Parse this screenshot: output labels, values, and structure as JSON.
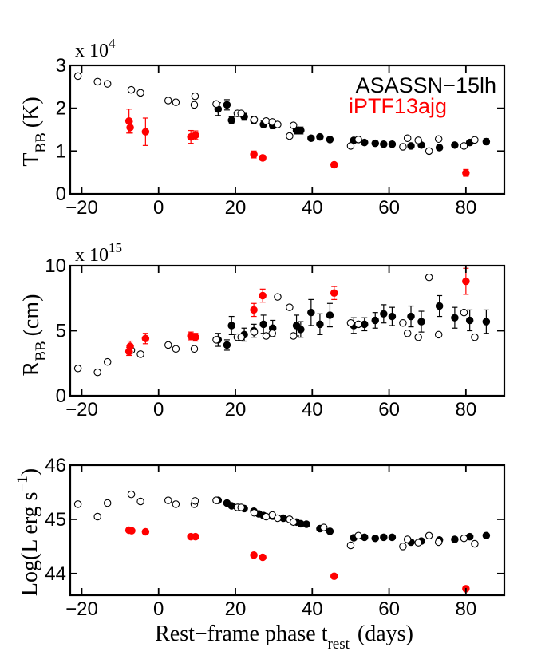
{
  "colors": {
    "asassn": "#000000",
    "iptf": "#ff0000",
    "open": "#000000"
  },
  "x_axis": {
    "label_main": "Rest−frame phase t",
    "label_sub": "rest",
    "label_units": "(days)",
    "ticks": [
      -20,
      0,
      20,
      40,
      60,
      80
    ],
    "tick_labels": [
      "−20",
      "0",
      "20",
      "40",
      "60",
      "80"
    ],
    "range": [
      -23,
      90
    ]
  },
  "chart_data": [
    {
      "type": "scatter",
      "name": "temperature",
      "ylabel_main": "T",
      "ylabel_sub": "BB",
      "ylabel_units": "(K)",
      "exponent_label": "x 10",
      "exponent_power": "4",
      "ylim": [
        0,
        3
      ],
      "yticks": [
        0,
        1,
        2,
        3
      ],
      "ytick_labels": [
        "0",
        "1",
        "2",
        "3"
      ],
      "legend": [
        "ASASSN−15lh",
        "iPTF13ajg"
      ],
      "legend_position": "top-right",
      "series": [
        {
          "name": "ASASSN-15lh (filled)",
          "style": "filled-black",
          "points": [
            {
              "x": 15.5,
              "y": 1.98,
              "e": 0.15
            },
            {
              "x": 17.8,
              "y": 2.08,
              "e": 0.12
            },
            {
              "x": 19.0,
              "y": 1.72,
              "e": 0.08
            },
            {
              "x": 22.3,
              "y": 1.8,
              "e": 0.08
            },
            {
              "x": 24.8,
              "y": 1.72,
              "e": 0.08
            },
            {
              "x": 27.3,
              "y": 1.62,
              "e": 0.08
            },
            {
              "x": 29.7,
              "y": 1.6,
              "e": 0.08
            },
            {
              "x": 35.9,
              "y": 1.48,
              "e": 0.08
            },
            {
              "x": 37.0,
              "y": 1.48,
              "e": 0.08
            },
            {
              "x": 39.7,
              "y": 1.3,
              "e": 0.05
            },
            {
              "x": 42.0,
              "y": 1.33,
              "e": 0.05
            },
            {
              "x": 44.6,
              "y": 1.27,
              "e": 0.05
            },
            {
              "x": 50.8,
              "y": 1.25,
              "e": 0.05
            },
            {
              "x": 53.6,
              "y": 1.2,
              "e": 0.05
            },
            {
              "x": 56.4,
              "y": 1.18,
              "e": 0.05
            },
            {
              "x": 58.6,
              "y": 1.16,
              "e": 0.05
            },
            {
              "x": 60.8,
              "y": 1.16,
              "e": 0.05
            },
            {
              "x": 65.7,
              "y": 1.12,
              "e": 0.05
            },
            {
              "x": 68.4,
              "y": 1.14,
              "e": 0.05
            },
            {
              "x": 73.1,
              "y": 1.08,
              "e": 0.05
            },
            {
              "x": 77.1,
              "y": 1.14,
              "e": 0.05
            },
            {
              "x": 81.0,
              "y": 1.2,
              "e": 0.05
            },
            {
              "x": 85.3,
              "y": 1.22,
              "e": 0.07
            }
          ]
        },
        {
          "name": "ASASSN-15lh (open)",
          "style": "open-black",
          "points": [
            {
              "x": -21.0,
              "y": 2.75
            },
            {
              "x": -15.9,
              "y": 2.62
            },
            {
              "x": -13.3,
              "y": 2.57
            },
            {
              "x": -7.1,
              "y": 2.43
            },
            {
              "x": -4.7,
              "y": 2.36
            },
            {
              "x": 2.5,
              "y": 2.18
            },
            {
              "x": 4.5,
              "y": 2.14
            },
            {
              "x": 9.5,
              "y": 2.28
            },
            {
              "x": 9.3,
              "y": 2.08
            },
            {
              "x": 15.0,
              "y": 2.1
            },
            {
              "x": 20.5,
              "y": 1.88
            },
            {
              "x": 21.5,
              "y": 1.88
            },
            {
              "x": 24.9,
              "y": 1.73
            },
            {
              "x": 28.0,
              "y": 1.7
            },
            {
              "x": 29.6,
              "y": 1.68
            },
            {
              "x": 31.0,
              "y": 1.62
            },
            {
              "x": 34.1,
              "y": 1.35
            },
            {
              "x": 35.1,
              "y": 1.6
            },
            {
              "x": 50.0,
              "y": 1.12
            },
            {
              "x": 52.0,
              "y": 1.27
            },
            {
              "x": 63.6,
              "y": 1.1
            },
            {
              "x": 64.8,
              "y": 1.3
            },
            {
              "x": 67.6,
              "y": 1.25
            },
            {
              "x": 70.4,
              "y": 1.0
            },
            {
              "x": 72.9,
              "y": 1.28
            },
            {
              "x": 79.5,
              "y": 1.12
            },
            {
              "x": 82.3,
              "y": 1.26
            }
          ]
        },
        {
          "name": "iPTF13ajg",
          "style": "filled-red",
          "points": [
            {
              "x": -7.7,
              "y": 1.7,
              "e": 0.28
            },
            {
              "x": -7.4,
              "y": 1.55,
              "e": 0.13
            },
            {
              "x": -3.4,
              "y": 1.45,
              "e": 0.32
            },
            {
              "x": 8.4,
              "y": 1.33,
              "e": 0.15
            },
            {
              "x": 9.6,
              "y": 1.37,
              "e": 0.1
            },
            {
              "x": 24.8,
              "y": 0.92,
              "e": 0.08
            },
            {
              "x": 27.1,
              "y": 0.84,
              "e": 0.06
            },
            {
              "x": 45.7,
              "y": 0.68,
              "e": 0.05
            },
            {
              "x": 80.0,
              "y": 0.49,
              "e": 0.08
            }
          ]
        }
      ]
    },
    {
      "type": "scatter",
      "name": "radius",
      "ylabel_main": "R",
      "ylabel_sub": "BB",
      "ylabel_units": "(cm)",
      "exponent_label": "x 10",
      "exponent_power": "15",
      "ylim": [
        0,
        10
      ],
      "yticks": [
        0,
        5,
        10
      ],
      "ytick_labels": [
        "0",
        "5",
        "10"
      ],
      "series": [
        {
          "name": "ASASSN-15lh (filled)",
          "style": "filled-black",
          "points": [
            {
              "x": 15.5,
              "y": 4.3,
              "e": 0.5
            },
            {
              "x": 17.8,
              "y": 3.9,
              "e": 0.4
            },
            {
              "x": 19.0,
              "y": 5.4,
              "e": 0.7
            },
            {
              "x": 22.3,
              "y": 4.7,
              "e": 0.5
            },
            {
              "x": 24.8,
              "y": 5.0,
              "e": 0.5
            },
            {
              "x": 27.3,
              "y": 5.5,
              "e": 0.7
            },
            {
              "x": 29.7,
              "y": 5.2,
              "e": 0.6
            },
            {
              "x": 35.9,
              "y": 5.4,
              "e": 0.8
            },
            {
              "x": 37.0,
              "y": 5.1,
              "e": 0.6
            },
            {
              "x": 39.7,
              "y": 6.4,
              "e": 1.0
            },
            {
              "x": 42.0,
              "y": 5.5,
              "e": 0.8
            },
            {
              "x": 44.6,
              "y": 6.2,
              "e": 0.9
            },
            {
              "x": 50.8,
              "y": 5.4,
              "e": 0.6
            },
            {
              "x": 53.6,
              "y": 5.5,
              "e": 0.5
            },
            {
              "x": 56.4,
              "y": 5.8,
              "e": 0.6
            },
            {
              "x": 58.6,
              "y": 6.3,
              "e": 0.7
            },
            {
              "x": 60.8,
              "y": 6.1,
              "e": 0.7
            },
            {
              "x": 65.7,
              "y": 6.1,
              "e": 0.8
            },
            {
              "x": 68.4,
              "y": 5.7,
              "e": 0.8
            },
            {
              "x": 73.1,
              "y": 6.9,
              "e": 0.8
            },
            {
              "x": 77.1,
              "y": 6.0,
              "e": 0.8
            },
            {
              "x": 81.0,
              "y": 5.8,
              "e": 0.8
            },
            {
              "x": 85.3,
              "y": 5.7,
              "e": 0.9
            }
          ]
        },
        {
          "name": "ASASSN-15lh (open)",
          "style": "open-black",
          "points": [
            {
              "x": -21.0,
              "y": 2.1
            },
            {
              "x": -15.9,
              "y": 1.8
            },
            {
              "x": -13.3,
              "y": 2.6
            },
            {
              "x": -7.1,
              "y": 3.5
            },
            {
              "x": -4.7,
              "y": 3.2
            },
            {
              "x": 2.5,
              "y": 3.9
            },
            {
              "x": 4.5,
              "y": 3.6
            },
            {
              "x": 9.3,
              "y": 3.6
            },
            {
              "x": 9.5,
              "y": 4.5
            },
            {
              "x": 15.0,
              "y": 4.3
            },
            {
              "x": 20.5,
              "y": 4.5
            },
            {
              "x": 21.5,
              "y": 4.5
            },
            {
              "x": 24.9,
              "y": 4.9
            },
            {
              "x": 28.0,
              "y": 4.6
            },
            {
              "x": 29.6,
              "y": 4.8
            },
            {
              "x": 31.0,
              "y": 7.6
            },
            {
              "x": 34.1,
              "y": 6.8
            },
            {
              "x": 35.1,
              "y": 4.6
            },
            {
              "x": 50.0,
              "y": 5.6
            },
            {
              "x": 52.0,
              "y": 5.5
            },
            {
              "x": 63.6,
              "y": 5.6
            },
            {
              "x": 64.8,
              "y": 4.8
            },
            {
              "x": 67.6,
              "y": 4.5
            },
            {
              "x": 70.4,
              "y": 9.1
            },
            {
              "x": 72.9,
              "y": 4.7
            },
            {
              "x": 79.5,
              "y": 6.4
            },
            {
              "x": 82.3,
              "y": 4.5
            }
          ]
        },
        {
          "name": "iPTF13ajg",
          "style": "filled-red",
          "points": [
            {
              "x": -7.7,
              "y": 3.4,
              "e": 0.3
            },
            {
              "x": -7.4,
              "y": 3.8,
              "e": 0.4
            },
            {
              "x": -3.4,
              "y": 4.4,
              "e": 0.4
            },
            {
              "x": 8.4,
              "y": 4.6,
              "e": 0.3
            },
            {
              "x": 9.6,
              "y": 4.5,
              "e": 0.3
            },
            {
              "x": 24.8,
              "y": 6.6,
              "e": 0.5
            },
            {
              "x": 27.1,
              "y": 7.7,
              "e": 0.5
            },
            {
              "x": 45.7,
              "y": 7.9,
              "e": 0.5
            },
            {
              "x": 80.0,
              "y": 8.8,
              "e": 1.0
            }
          ]
        }
      ]
    },
    {
      "type": "scatter",
      "name": "luminosity",
      "ylabel_main": "Log(L erg s",
      "ylabel_sup": "−1",
      "ylabel_close": ")",
      "ylim": [
        43.6,
        46
      ],
      "yticks": [
        44,
        45,
        46
      ],
      "ytick_labels": [
        "44",
        "45",
        "46"
      ],
      "series": [
        {
          "name": "ASASSN-15lh (filled)",
          "style": "filled-black",
          "points": [
            {
              "x": 15.5,
              "y": 45.35
            },
            {
              "x": 17.8,
              "y": 45.3
            },
            {
              "x": 19.0,
              "y": 45.25
            },
            {
              "x": 20.7,
              "y": 45.22
            },
            {
              "x": 22.3,
              "y": 45.2
            },
            {
              "x": 24.8,
              "y": 45.15
            },
            {
              "x": 26.1,
              "y": 45.1
            },
            {
              "x": 27.3,
              "y": 45.07
            },
            {
              "x": 29.7,
              "y": 45.06
            },
            {
              "x": 32.5,
              "y": 45.02
            },
            {
              "x": 35.9,
              "y": 44.95
            },
            {
              "x": 37.0,
              "y": 44.92
            },
            {
              "x": 38.5,
              "y": 44.91
            },
            {
              "x": 42.0,
              "y": 44.83
            },
            {
              "x": 44.6,
              "y": 44.78
            },
            {
              "x": 50.8,
              "y": 44.66
            },
            {
              "x": 53.6,
              "y": 44.67
            },
            {
              "x": 56.4,
              "y": 44.65
            },
            {
              "x": 58.6,
              "y": 44.67
            },
            {
              "x": 60.8,
              "y": 44.67
            },
            {
              "x": 65.7,
              "y": 44.58
            },
            {
              "x": 68.4,
              "y": 44.6
            },
            {
              "x": 73.1,
              "y": 44.62
            },
            {
              "x": 77.1,
              "y": 44.63
            },
            {
              "x": 81.0,
              "y": 44.68
            },
            {
              "x": 85.3,
              "y": 44.7
            }
          ]
        },
        {
          "name": "ASASSN-15lh (open)",
          "style": "open-black",
          "points": [
            {
              "x": -21.0,
              "y": 45.28
            },
            {
              "x": -15.9,
              "y": 45.05
            },
            {
              "x": -13.3,
              "y": 45.3
            },
            {
              "x": -7.1,
              "y": 45.46
            },
            {
              "x": -4.7,
              "y": 45.33
            },
            {
              "x": 2.5,
              "y": 45.35
            },
            {
              "x": 4.5,
              "y": 45.28
            },
            {
              "x": 9.3,
              "y": 45.28
            },
            {
              "x": 9.5,
              "y": 45.34
            },
            {
              "x": 15.0,
              "y": 45.35
            },
            {
              "x": 20.5,
              "y": 45.22
            },
            {
              "x": 21.5,
              "y": 45.22
            },
            {
              "x": 24.9,
              "y": 45.12
            },
            {
              "x": 28.0,
              "y": 45.05
            },
            {
              "x": 29.6,
              "y": 45.08
            },
            {
              "x": 31.0,
              "y": 45.02
            },
            {
              "x": 34.1,
              "y": 45.0
            },
            {
              "x": 35.1,
              "y": 44.95
            },
            {
              "x": 43.0,
              "y": 44.85
            },
            {
              "x": 50.0,
              "y": 44.52
            },
            {
              "x": 52.0,
              "y": 44.7
            },
            {
              "x": 63.6,
              "y": 44.5
            },
            {
              "x": 64.8,
              "y": 44.63
            },
            {
              "x": 67.6,
              "y": 44.57
            },
            {
              "x": 70.4,
              "y": 44.7
            },
            {
              "x": 72.9,
              "y": 44.58
            },
            {
              "x": 79.5,
              "y": 44.65
            },
            {
              "x": 82.3,
              "y": 44.55
            }
          ]
        },
        {
          "name": "iPTF13ajg",
          "style": "filled-red",
          "points": [
            {
              "x": -7.7,
              "y": 44.8
            },
            {
              "x": -7.0,
              "y": 44.79
            },
            {
              "x": -3.4,
              "y": 44.77
            },
            {
              "x": 8.4,
              "y": 44.68
            },
            {
              "x": 9.6,
              "y": 44.68
            },
            {
              "x": 24.8,
              "y": 44.34
            },
            {
              "x": 27.1,
              "y": 44.3
            },
            {
              "x": 45.7,
              "y": 43.95
            },
            {
              "x": 80.0,
              "y": 43.72
            }
          ]
        }
      ]
    }
  ]
}
